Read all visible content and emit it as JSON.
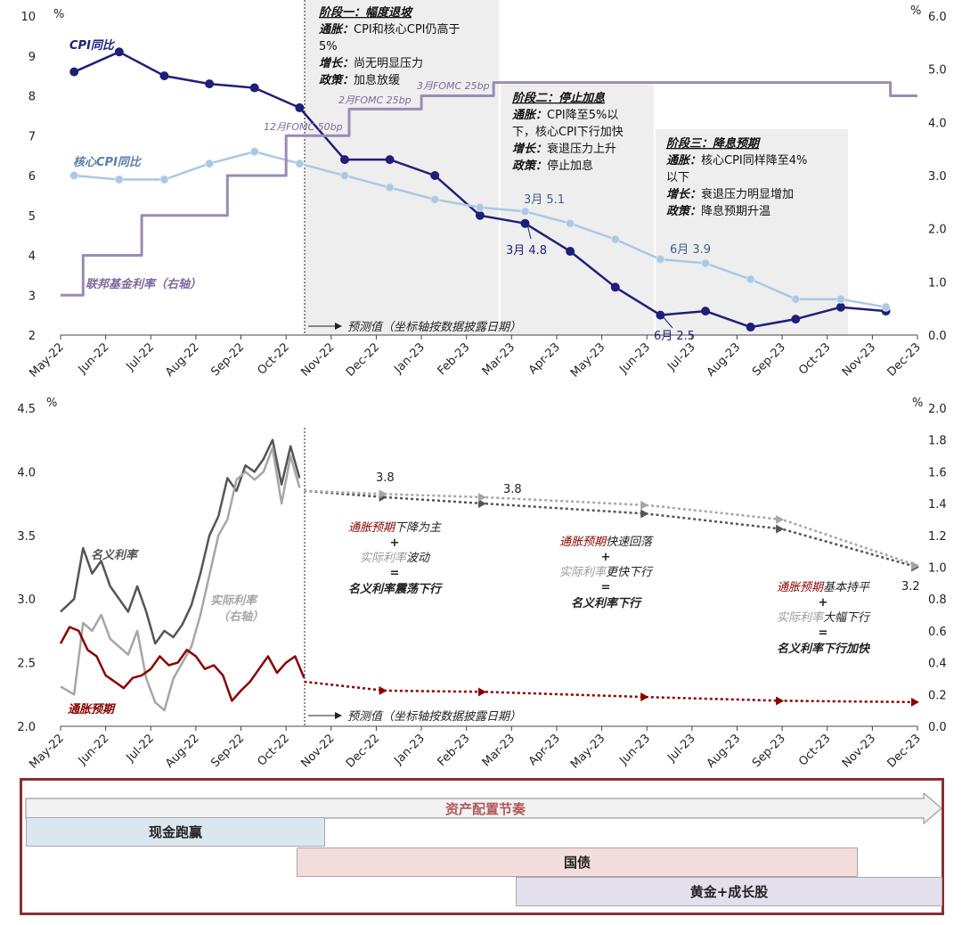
{
  "chart_data": [
    {
      "type": "line",
      "x_categories": [
        "May-22",
        "Jun-22",
        "Jul-22",
        "Aug-22",
        "Sep-22",
        "Oct-22",
        "Nov-22",
        "Dec-22",
        "Jan-23",
        "Feb-23",
        "Mar-23",
        "Apr-23",
        "May-23",
        "Jun-23",
        "Jul-23",
        "Aug-23",
        "Sep-23",
        "Oct-23",
        "Nov-23",
        "Dec-23"
      ],
      "y_left": {
        "unit": "%",
        "ylim": [
          2,
          10
        ],
        "ticks": [
          "2",
          "3",
          "4",
          "5",
          "6",
          "7",
          "8",
          "9",
          "10"
        ]
      },
      "y_right": {
        "unit": "%",
        "ylim": [
          0,
          6
        ],
        "ticks": [
          "0.0",
          "1.0",
          "2.0",
          "3.0",
          "4.0",
          "5.0",
          "6.0"
        ]
      },
      "series": [
        {
          "name": "CPI同比",
          "axis": "left",
          "color": "#1f1f7a",
          "x": [
            0.3,
            1.3,
            2.3,
            3.3,
            4.3,
            5.3,
            6.3,
            7.3,
            8.3,
            9.3,
            10.3,
            11.3,
            12.3,
            13.3,
            14.3,
            15.3,
            16.3,
            17.3,
            18.3
          ],
          "values": [
            8.6,
            9.1,
            8.5,
            8.3,
            8.2,
            7.7,
            6.4,
            6.4,
            6.0,
            5.0,
            4.8,
            4.1,
            3.2,
            2.5,
            2.6,
            2.2,
            2.4,
            2.7,
            2.6
          ]
        },
        {
          "name": "核心CPI同比",
          "axis": "left",
          "color": "#a9c8e4",
          "x": [
            0.3,
            1.3,
            2.3,
            3.3,
            4.3,
            5.3,
            6.3,
            7.3,
            8.3,
            9.3,
            10.3,
            11.3,
            12.3,
            13.3,
            14.3,
            15.3,
            16.3,
            17.3,
            18.3
          ],
          "values": [
            6.0,
            5.9,
            5.9,
            6.3,
            6.6,
            6.3,
            6.0,
            5.7,
            5.4,
            5.2,
            5.1,
            4.8,
            4.4,
            3.9,
            3.8,
            3.4,
            2.9,
            2.9,
            2.7
          ]
        },
        {
          "name": "联邦基金利率（右轴）",
          "axis": "right",
          "color": "#9b8bb4",
          "step": true,
          "x": [
            0,
            0.5,
            0.5,
            1.8,
            1.8,
            3.7,
            3.7,
            5.0,
            5.0,
            6.4,
            6.4,
            8.0,
            8.0,
            9.6,
            9.6,
            18.4,
            18.4,
            19
          ],
          "values": [
            0.75,
            0.75,
            1.5,
            1.5,
            2.25,
            2.25,
            3.0,
            3.0,
            3.75,
            3.75,
            4.25,
            4.25,
            4.5,
            4.5,
            4.75,
            4.75,
            4.5,
            4.5
          ]
        }
      ],
      "annotations": {
        "fomc": [
          "12月FOMC 50bp",
          "2月FOMC 25bp",
          "3月FOMC 25bp"
        ],
        "points": [
          {
            "label": "3月 5.1"
          },
          {
            "label": "3月 4.8"
          },
          {
            "label": "6月 3.9"
          },
          {
            "label": "6月 2.5"
          }
        ],
        "forecast": "预测值（坐标轴按数据披露日期）",
        "stages": [
          {
            "title": "阶段一：幅度退坡",
            "lines": [
              {
                "k": "通胀：",
                "v": "CPI和核心CPI仍高于"
              },
              {
                "k": "",
                "v": "5%"
              },
              {
                "k": "增长：",
                "v": "尚无明显压力"
              },
              {
                "k": "政策：",
                "v": "加息放缓"
              }
            ]
          },
          {
            "title": "阶段二：停止加息",
            "lines": [
              {
                "k": "通胀：",
                "v": "CPI降至5%以"
              },
              {
                "k": "",
                "v": "下，核心CPI下行加快"
              },
              {
                "k": "增长：",
                "v": "衰退压力上升"
              },
              {
                "k": "政策：",
                "v": "停止加息"
              }
            ]
          },
          {
            "title": "阶段三：降息预期",
            "lines": [
              {
                "k": "通胀：",
                "v": "核心CPI同样降至4%"
              },
              {
                "k": "",
                "v": "以下"
              },
              {
                "k": "增长：",
                "v": "衰退压力明显增加"
              },
              {
                "k": "政策：",
                "v": "降息预期升温"
              }
            ]
          }
        ]
      }
    },
    {
      "type": "line",
      "x_categories": [
        "May-22",
        "Jun-22",
        "Jul-22",
        "Aug-22",
        "Sep-22",
        "Oct-22",
        "Nov-22",
        "Dec-22",
        "Jan-23",
        "Feb-23",
        "Mar-23",
        "Apr-23",
        "May-23",
        "Jun-23",
        "Jul-23",
        "Aug-23",
        "Sep-23",
        "Oct-23",
        "Nov-23",
        "Dec-23"
      ],
      "y_left": {
        "unit": "%",
        "ylim": [
          2.0,
          4.5
        ],
        "ticks": [
          "2.0",
          "2.5",
          "3.0",
          "3.5",
          "4.0",
          "4.5"
        ]
      },
      "y_right": {
        "unit": "%",
        "ylim": [
          0.0,
          2.0
        ],
        "ticks": [
          "0.0",
          "0.2",
          "0.4",
          "0.6",
          "0.8",
          "1.0",
          "1.2",
          "1.4",
          "1.6",
          "1.8",
          "2.0"
        ]
      },
      "series": [
        {
          "name": "名义利率",
          "axis": "left",
          "color": "#555555",
          "x": [
            0.0,
            0.3,
            0.5,
            0.7,
            0.9,
            1.1,
            1.3,
            1.5,
            1.7,
            1.9,
            2.1,
            2.3,
            2.5,
            2.7,
            2.9,
            3.1,
            3.3,
            3.5,
            3.7,
            3.9,
            4.1,
            4.3,
            4.5,
            4.7,
            4.9,
            5.1,
            5.3
          ],
          "values": [
            2.9,
            3.0,
            3.4,
            3.2,
            3.3,
            3.1,
            3.0,
            2.9,
            3.1,
            2.9,
            2.65,
            2.75,
            2.7,
            2.8,
            2.95,
            3.2,
            3.5,
            3.65,
            3.95,
            3.85,
            4.05,
            4.0,
            4.1,
            4.25,
            3.9,
            4.2,
            3.95
          ]
        },
        {
          "name": "实际利率（右轴）",
          "axis": "right",
          "color": "#a6a6a6",
          "x": [
            0.0,
            0.3,
            0.5,
            0.7,
            0.9,
            1.1,
            1.3,
            1.5,
            1.7,
            1.9,
            2.1,
            2.3,
            2.5,
            2.7,
            2.9,
            3.1,
            3.3,
            3.5,
            3.7,
            3.9,
            4.1,
            4.3,
            4.5,
            4.7,
            4.9,
            5.1,
            5.3
          ],
          "values": [
            0.25,
            0.2,
            0.65,
            0.6,
            0.7,
            0.55,
            0.5,
            0.45,
            0.6,
            0.3,
            0.15,
            0.1,
            0.3,
            0.4,
            0.5,
            0.7,
            0.95,
            1.2,
            1.3,
            1.55,
            1.6,
            1.55,
            1.6,
            1.75,
            1.4,
            1.7,
            1.5
          ]
        },
        {
          "name": "通胀预期",
          "axis": "left",
          "color": "#8b0000",
          "x": [
            0.0,
            0.2,
            0.4,
            0.6,
            0.8,
            1.0,
            1.2,
            1.4,
            1.6,
            1.8,
            2.0,
            2.2,
            2.4,
            2.6,
            2.8,
            3.0,
            3.2,
            3.4,
            3.6,
            3.8,
            4.0,
            4.2,
            4.4,
            4.6,
            4.8,
            5.0,
            5.2,
            5.4
          ],
          "values": [
            2.65,
            2.78,
            2.75,
            2.6,
            2.55,
            2.4,
            2.35,
            2.3,
            2.38,
            2.4,
            2.45,
            2.55,
            2.48,
            2.5,
            2.6,
            2.55,
            2.45,
            2.48,
            2.4,
            2.2,
            2.28,
            2.35,
            2.45,
            2.55,
            2.42,
            2.5,
            2.55,
            2.38
          ]
        },
        {
          "name": "名义利率预测",
          "axis": "left",
          "color": "#555555",
          "dashed": true,
          "x": [
            5.4,
            7.2,
            9.4,
            13.0,
            16.0,
            19.0
          ],
          "values": [
            3.85,
            3.8,
            3.75,
            3.67,
            3.55,
            3.25
          ]
        },
        {
          "name": "实际利率预测",
          "axis": "right",
          "color": "#a6a6a6",
          "dashed": true,
          "x": [
            5.4,
            7.2,
            9.4,
            13.0,
            16.0,
            19.0
          ],
          "values": [
            1.48,
            1.46,
            1.44,
            1.39,
            1.3,
            1.01
          ]
        },
        {
          "name": "通胀预期预测",
          "axis": "left",
          "color": "#8b0000",
          "dashed": true,
          "x": [
            5.4,
            7.2,
            9.4,
            13.0,
            16.0,
            19.0
          ],
          "values": [
            2.35,
            2.28,
            2.27,
            2.23,
            2.2,
            2.19
          ]
        }
      ],
      "annotations": {
        "values": [
          "3.8",
          "3.8",
          "3.2"
        ],
        "forecast": "预测值（坐标轴按数据披露日期）",
        "logic": [
          {
            "l1a": "通胀预期",
            "l1b": "下降为主",
            "plus": "+",
            "l2a": "实际利率",
            "l2b": "波动",
            "eq": "=",
            "l3a": "名义利率",
            "l3b": "震荡下行"
          },
          {
            "l1a": "通胀预期",
            "l1b": "快速回落",
            "plus": "+",
            "l2a": "实际利率",
            "l2b": "更快下行",
            "eq": "=",
            "l3a": "名义利率",
            "l3b": "下行"
          },
          {
            "l1a": "通胀预期",
            "l1b": "基本持平",
            "plus": "+",
            "l2a": "实际利率",
            "l2b": "大幅下行",
            "eq": "=",
            "l3a": "名义利率",
            "l3b": "下行加快"
          }
        ]
      }
    }
  ],
  "allocation": {
    "title": "资产配置节奏",
    "bars": [
      {
        "label": "现金跑赢",
        "color": "#dce6f1"
      },
      {
        "label": "国债",
        "color": "#f4dcdc"
      },
      {
        "label": "黄金+成长股",
        "color": "#e4dfec"
      }
    ]
  }
}
